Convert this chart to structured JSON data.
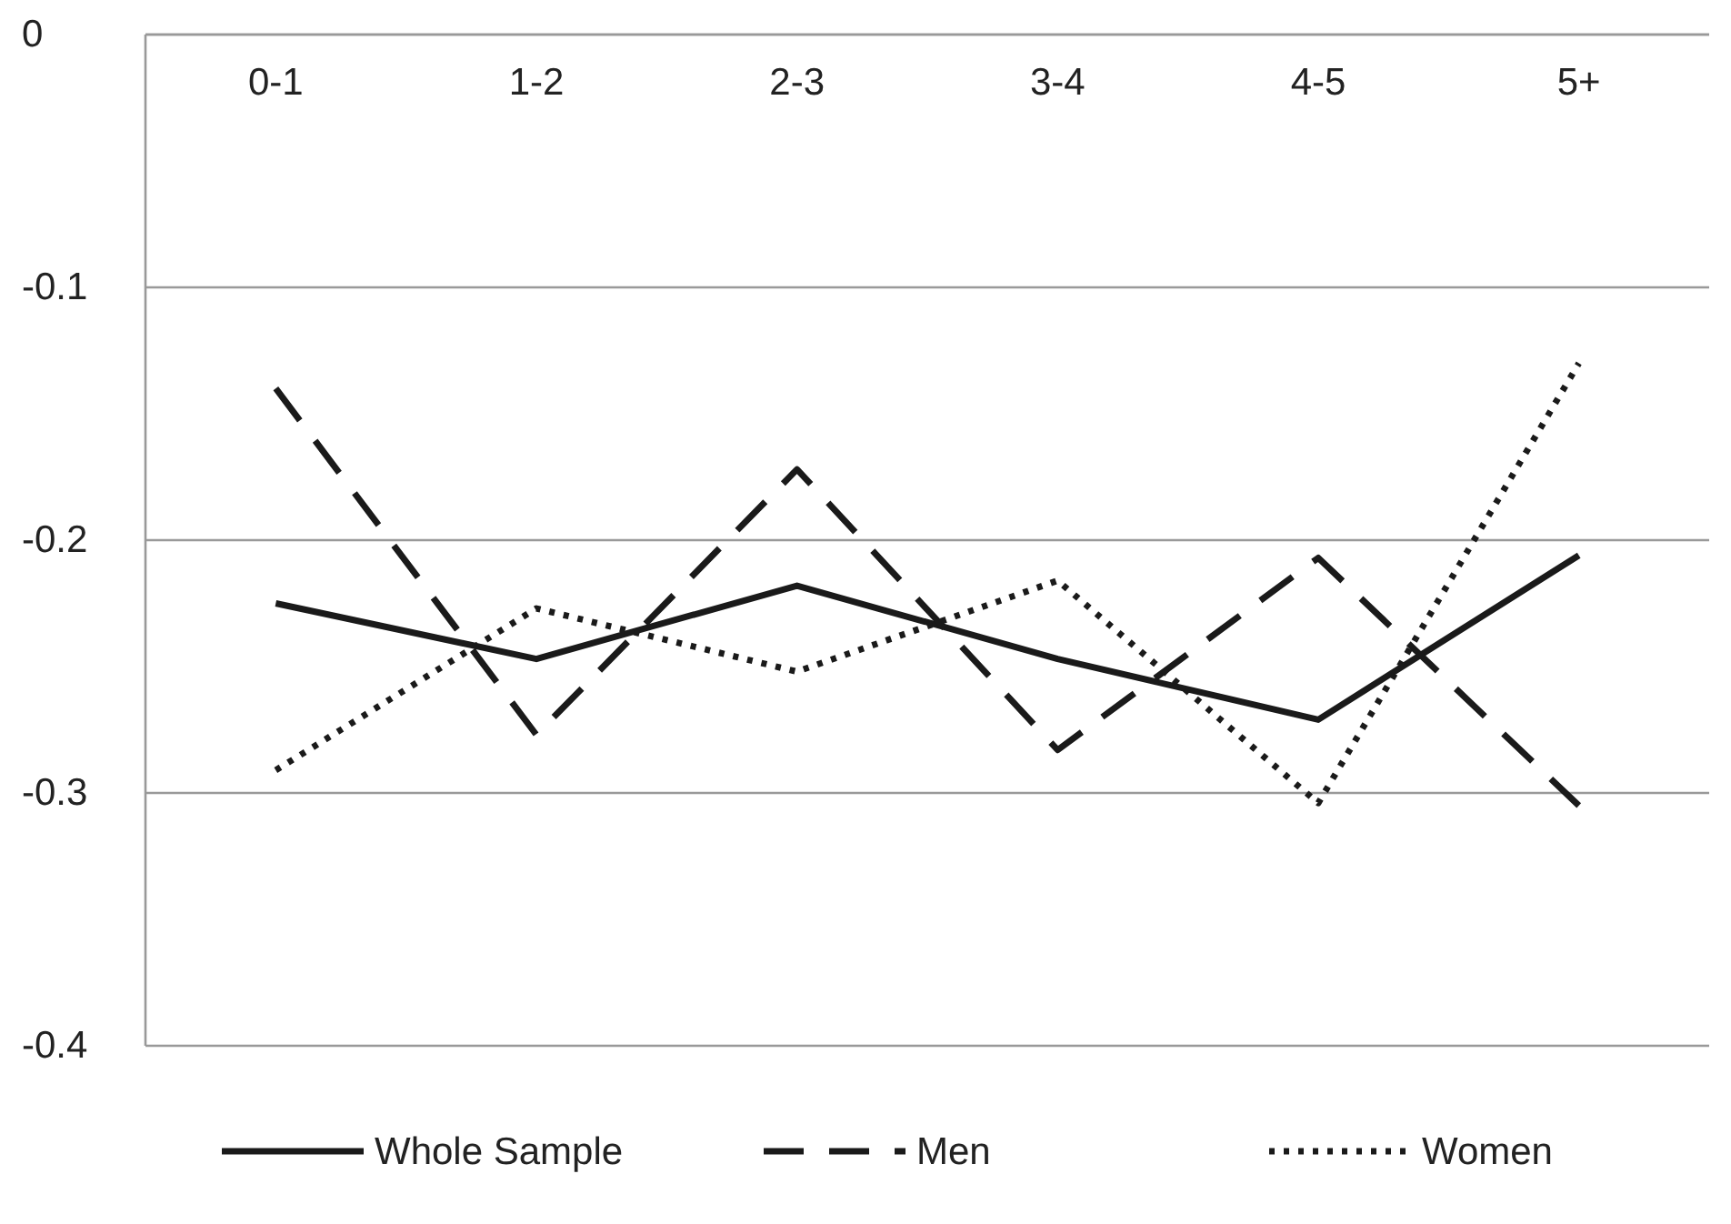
{
  "chart_data": {
    "type": "line",
    "categories": [
      "0-1",
      "1-2",
      "2-3",
      "3-4",
      "4-5",
      "5+"
    ],
    "series": [
      {
        "name": "Whole Sample",
        "color": "#1a1a1a",
        "line_style": "solid",
        "values": [
          -0.225,
          -0.247,
          -0.218,
          -0.247,
          -0.271,
          -0.206
        ]
      },
      {
        "name": "Men",
        "color": "#1a1a1a",
        "line_style": "dashed",
        "values": [
          -0.14,
          -0.277,
          -0.172,
          -0.283,
          -0.207,
          -0.305
        ]
      },
      {
        "name": "Women",
        "color": "#1a1a1a",
        "line_style": "dotted",
        "values": [
          -0.291,
          -0.227,
          -0.252,
          -0.216,
          -0.304,
          -0.13
        ]
      }
    ],
    "ylim": [
      -0.4,
      0
    ],
    "yticks": [
      0,
      -0.1,
      -0.2,
      -0.3,
      -0.4
    ],
    "grid": "y",
    "legend": "bottom",
    "marker": "none"
  }
}
